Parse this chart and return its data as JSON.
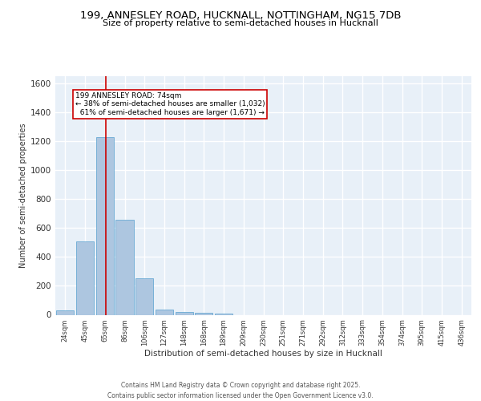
{
  "title_line1": "199, ANNESLEY ROAD, HUCKNALL, NOTTINGHAM, NG15 7DB",
  "title_line2": "Size of property relative to semi-detached houses in Hucknall",
  "xlabel": "Distribution of semi-detached houses by size in Hucknall",
  "ylabel": "Number of semi-detached properties",
  "bin_labels": [
    "24sqm",
    "45sqm",
    "65sqm",
    "86sqm",
    "106sqm",
    "127sqm",
    "148sqm",
    "168sqm",
    "189sqm",
    "209sqm",
    "230sqm",
    "251sqm",
    "271sqm",
    "292sqm",
    "312sqm",
    "333sqm",
    "354sqm",
    "374sqm",
    "395sqm",
    "415sqm",
    "436sqm"
  ],
  "bar_values": [
    30,
    505,
    1230,
    660,
    255,
    35,
    22,
    15,
    10,
    0,
    0,
    0,
    0,
    0,
    0,
    0,
    0,
    0,
    0,
    0,
    0
  ],
  "bar_color": "#adc6e0",
  "bar_edge_color": "#6aaad4",
  "background_color": "#e8f0f8",
  "grid_color": "#ffffff",
  "property_label": "199 ANNESLEY ROAD: 74sqm",
  "pct_smaller": 38,
  "pct_larger": 61,
  "count_smaller": 1032,
  "count_larger": 1671,
  "vline_color": "#cc0000",
  "annotation_box_edge_color": "#cc0000",
  "ylim": [
    0,
    1650
  ],
  "yticks": [
    0,
    200,
    400,
    600,
    800,
    1000,
    1200,
    1400,
    1600
  ],
  "footer_line1": "Contains HM Land Registry data © Crown copyright and database right 2025.",
  "footer_line2": "Contains public sector information licensed under the Open Government Licence v3.0."
}
